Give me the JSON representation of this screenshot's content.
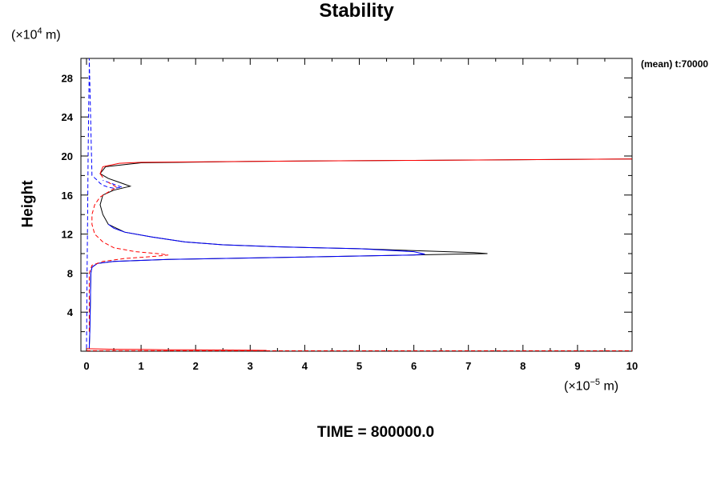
{
  "chart_data": {
    "type": "line",
    "title": "Stability",
    "ylabel": "Height",
    "y_unit_prefix": "(×10",
    "y_unit_exp": "4",
    "y_unit_suffix": " m)",
    "x_unit_prefix": "(×10",
    "x_unit_exp": "−5",
    "x_unit_suffix": " m)",
    "annotation": "(mean) t:70000",
    "footer": "TIME = 800000.0",
    "xlim": [
      0,
      10
    ],
    "ylim": [
      0,
      30
    ],
    "xticks": [
      0,
      1,
      2,
      3,
      4,
      5,
      6,
      7,
      8,
      9,
      10
    ],
    "yticks": [
      4,
      8,
      12,
      16,
      20,
      24,
      28
    ],
    "grid": false,
    "series": [
      {
        "color": "#000000",
        "style": "solid",
        "x": [
          0.05,
          0.06,
          0.07,
          0.08,
          0.1,
          0.2,
          0.5,
          1.5,
          3.5,
          5.5,
          6.8,
          7.35,
          7.1,
          6.0,
          5.0,
          3.5,
          2.5,
          1.8,
          1.2,
          0.7,
          0.4,
          0.3,
          0.25,
          0.3,
          0.5,
          0.8,
          0.6,
          0.4,
          0.25,
          0.35,
          1.0,
          3.0,
          6.0,
          8.0,
          10.0
        ],
        "y": [
          0.3,
          2.0,
          5.0,
          8.0,
          8.6,
          9.0,
          9.2,
          9.4,
          9.6,
          9.8,
          9.95,
          10.0,
          10.1,
          10.3,
          10.5,
          10.7,
          10.9,
          11.2,
          11.7,
          12.2,
          13.0,
          14.0,
          15.0,
          16.0,
          16.5,
          16.9,
          17.3,
          17.7,
          18.2,
          18.9,
          19.3,
          19.45,
          19.55,
          19.62,
          19.7
        ]
      },
      {
        "color": "#0000ff",
        "style": "solid",
        "x": [
          0.05,
          0.06,
          0.07,
          0.08,
          0.1,
          0.2,
          0.5,
          1.5,
          3.5,
          5.5,
          6.0,
          6.2,
          6.0,
          5.0,
          3.5,
          2.5,
          1.8,
          1.2,
          0.7,
          0.5,
          0.4
        ],
        "y": [
          0.3,
          2.0,
          5.0,
          8.0,
          8.6,
          9.0,
          9.2,
          9.4,
          9.6,
          9.8,
          9.85,
          9.95,
          10.2,
          10.5,
          10.7,
          10.9,
          11.2,
          11.7,
          12.2,
          12.6,
          13.0
        ]
      },
      {
        "color": "#0000ff",
        "style": "dashed",
        "x": [
          0.0,
          0.01,
          0.02,
          0.03,
          0.04,
          0.05,
          0.05,
          0.1,
          0.2,
          0.25,
          0.3,
          0.4,
          0.5,
          0.65,
          0.5,
          0.3
        ],
        "y": [
          0.3,
          8.0,
          14.0,
          20.0,
          25.0,
          28.5,
          30.0,
          18.0,
          17.5,
          17.2,
          17.0,
          16.8,
          16.7,
          16.8,
          17.1,
          17.5
        ]
      },
      {
        "color": "#ff0000",
        "style": "solid",
        "x": [
          0.3,
          0.25,
          0.3,
          0.6,
          1.0,
          3.0,
          6.0,
          8.0,
          10.0
        ],
        "y": [
          17.8,
          18.2,
          18.9,
          19.25,
          19.35,
          19.45,
          19.55,
          19.62,
          19.7
        ]
      },
      {
        "color": "#ff0000",
        "style": "dashed",
        "x": [
          0.05,
          0.05,
          0.1,
          0.3,
          0.7,
          1.2,
          1.5,
          1.3,
          0.9,
          0.5,
          0.3,
          0.15,
          0.1,
          0.1,
          0.15,
          0.25,
          0.4,
          0.55,
          0.4
        ],
        "y": [
          2.0,
          8.0,
          8.8,
          9.2,
          9.5,
          9.7,
          9.85,
          10.0,
          10.2,
          10.6,
          11.2,
          12.0,
          13.0,
          14.0,
          15.0,
          15.8,
          16.3,
          16.8,
          17.3
        ]
      },
      {
        "color": "#ff0000",
        "style": "solid",
        "x": [
          0.0,
          0.5,
          1.0,
          1.5,
          2.0,
          2.5,
          3.0,
          3.3
        ],
        "y": [
          0.25,
          0.2,
          0.18,
          0.15,
          0.14,
          0.12,
          0.1,
          0.08
        ]
      },
      {
        "color": "#ff0000",
        "style": "dashed",
        "x": [
          0.0,
          1.0,
          2.0,
          3.0,
          4.0,
          5.0,
          6.0,
          7.0,
          8.0,
          9.0,
          10.0
        ],
        "y": [
          0.05,
          0.05,
          0.05,
          0.05,
          0.05,
          0.05,
          0.05,
          0.05,
          0.05,
          0.05,
          0.05
        ]
      }
    ]
  }
}
